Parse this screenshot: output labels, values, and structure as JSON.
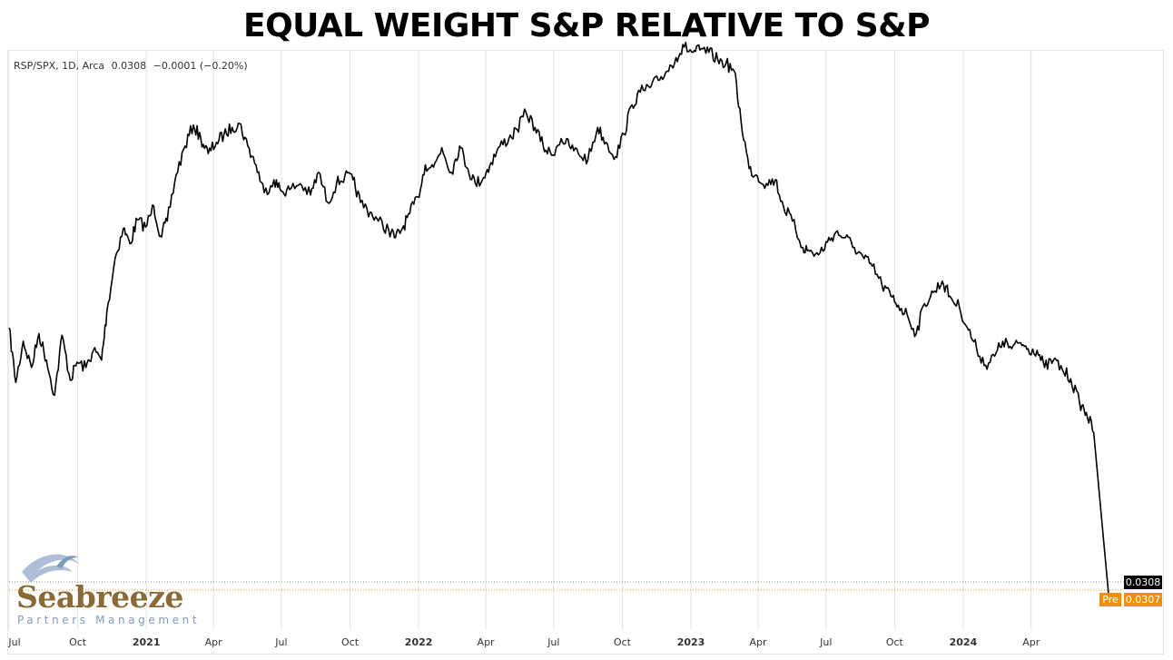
{
  "title": "EQUAL WEIGHT S&P RELATIVE TO S&P",
  "legend": {
    "symbol": "RSP/SPX, 1D, Arca",
    "value": "0.0308",
    "change": "−0.0001 (−0.20%)"
  },
  "price_tags": {
    "last": "0.0308",
    "pre_label": "Pre",
    "pre": "0.0307"
  },
  "logo": {
    "name": "Seabreeze",
    "subtitle": "Partners Management"
  },
  "colors": {
    "line": "#000000",
    "grid": "#e3e3e3",
    "pre_tag": "#f0900a",
    "logo_brown": "#8a6a37",
    "logo_blue": "#7e9bbd"
  },
  "chart_data": {
    "type": "line",
    "title": "EQUAL WEIGHT S&P RELATIVE TO S&P",
    "series_label": "RSP/SPX",
    "x_ticks": [
      "Jul",
      "Oct",
      "2021",
      "Apr",
      "Jul",
      "Oct",
      "2022",
      "Apr",
      "Jul",
      "Oct",
      "2023",
      "Apr",
      "Jul",
      "Oct",
      "2024",
      "Apr"
    ],
    "x_ticks_bold": [
      "2021",
      "2022",
      "2023",
      "2024"
    ],
    "xlim": [
      "2020-07-01",
      "2024-07-15"
    ],
    "ylim": [
      0.0305,
      0.038
    ],
    "grid": "vertical-only",
    "series": [
      {
        "values": [
          [
            "2020-07-01",
            0.03448
          ],
          [
            "2020-07-10",
            0.03375
          ],
          [
            "2020-07-20",
            0.0343
          ],
          [
            "2020-07-31",
            0.03395
          ],
          [
            "2020-08-10",
            0.0344
          ],
          [
            "2020-08-20",
            0.03405
          ],
          [
            "2020-08-31",
            0.03358
          ],
          [
            "2020-09-10",
            0.03438
          ],
          [
            "2020-09-21",
            0.03378
          ],
          [
            "2020-09-30",
            0.03402
          ],
          [
            "2020-10-12",
            0.03395
          ],
          [
            "2020-10-22",
            0.03418
          ],
          [
            "2020-11-02",
            0.03405
          ],
          [
            "2020-11-09",
            0.03468
          ],
          [
            "2020-11-20",
            0.0354
          ],
          [
            "2020-12-01",
            0.0358
          ],
          [
            "2020-12-10",
            0.0356
          ],
          [
            "2020-12-20",
            0.03592
          ],
          [
            "2020-12-31",
            0.03582
          ],
          [
            "2021-01-11",
            0.0361
          ],
          [
            "2021-01-20",
            0.0357
          ],
          [
            "2021-01-29",
            0.0359
          ],
          [
            "2021-02-10",
            0.03652
          ],
          [
            "2021-02-22",
            0.0369
          ],
          [
            "2021-03-05",
            0.03718
          ],
          [
            "2021-03-15",
            0.037
          ],
          [
            "2021-03-25",
            0.0368
          ],
          [
            "2021-04-05",
            0.03695
          ],
          [
            "2021-04-15",
            0.03705
          ],
          [
            "2021-04-26",
            0.03715
          ],
          [
            "2021-05-06",
            0.0372
          ],
          [
            "2021-05-17",
            0.0369
          ],
          [
            "2021-05-28",
            0.03665
          ],
          [
            "2021-06-08",
            0.03628
          ],
          [
            "2021-06-21",
            0.03645
          ],
          [
            "2021-07-01",
            0.0363
          ],
          [
            "2021-07-12",
            0.03632
          ],
          [
            "2021-07-26",
            0.0364
          ],
          [
            "2021-08-09",
            0.03625
          ],
          [
            "2021-08-20",
            0.03655
          ],
          [
            "2021-09-01",
            0.03615
          ],
          [
            "2021-09-13",
            0.0364
          ],
          [
            "2021-09-24",
            0.0365
          ],
          [
            "2021-10-05",
            0.03645
          ],
          [
            "2021-10-15",
            0.03615
          ],
          [
            "2021-10-28",
            0.03602
          ],
          [
            "2021-11-08",
            0.0359
          ],
          [
            "2021-11-22",
            0.03578
          ],
          [
            "2021-12-01",
            0.03568
          ],
          [
            "2021-12-10",
            0.0358
          ],
          [
            "2021-12-20",
            0.036
          ],
          [
            "2021-12-31",
            0.03622
          ],
          [
            "2022-01-10",
            0.03665
          ],
          [
            "2022-01-21",
            0.03662
          ],
          [
            "2022-02-01",
            0.03688
          ],
          [
            "2022-02-14",
            0.03655
          ],
          [
            "2022-02-25",
            0.0369
          ],
          [
            "2022-03-08",
            0.0366
          ],
          [
            "2022-03-18",
            0.0364
          ],
          [
            "2022-03-29",
            0.03648
          ],
          [
            "2022-04-08",
            0.03668
          ],
          [
            "2022-04-20",
            0.0369
          ],
          [
            "2022-05-02",
            0.037
          ],
          [
            "2022-05-13",
            0.03712
          ],
          [
            "2022-05-25",
            0.03735
          ],
          [
            "2022-06-06",
            0.03715
          ],
          [
            "2022-06-17",
            0.0369
          ],
          [
            "2022-06-28",
            0.03678
          ],
          [
            "2022-07-11",
            0.037
          ],
          [
            "2022-07-22",
            0.0369
          ],
          [
            "2022-08-03",
            0.0368
          ],
          [
            "2022-08-16",
            0.03672
          ],
          [
            "2022-08-29",
            0.03715
          ],
          [
            "2022-09-09",
            0.03695
          ],
          [
            "2022-09-22",
            0.03676
          ],
          [
            "2022-10-03",
            0.03706
          ],
          [
            "2022-10-14",
            0.03745
          ],
          [
            "2022-10-25",
            0.03762
          ],
          [
            "2022-11-07",
            0.03768
          ],
          [
            "2022-11-18",
            0.03778
          ],
          [
            "2022-11-30",
            0.0379
          ],
          [
            "2022-12-12",
            0.03808
          ],
          [
            "2022-12-23",
            0.03822
          ],
          [
            "2023-01-04",
            0.03815
          ],
          [
            "2023-01-13",
            0.03818
          ],
          [
            "2023-01-25",
            0.03815
          ],
          [
            "2023-02-06",
            0.03805
          ],
          [
            "2023-02-17",
            0.038
          ],
          [
            "2023-02-28",
            0.0379
          ],
          [
            "2023-03-09",
            0.03725
          ],
          [
            "2023-03-20",
            0.0366
          ],
          [
            "2023-03-31",
            0.0365
          ],
          [
            "2023-04-12",
            0.0364
          ],
          [
            "2023-04-24",
            0.03645
          ],
          [
            "2023-05-05",
            0.0361
          ],
          [
            "2023-05-17",
            0.0359
          ],
          [
            "2023-05-31",
            0.03555
          ],
          [
            "2023-06-09",
            0.0355
          ],
          [
            "2023-06-21",
            0.03545
          ],
          [
            "2023-07-03",
            0.03562
          ],
          [
            "2023-07-14",
            0.03575
          ],
          [
            "2023-07-27",
            0.03568
          ],
          [
            "2023-08-08",
            0.03555
          ],
          [
            "2023-08-21",
            0.0354
          ],
          [
            "2023-09-01",
            0.0353
          ],
          [
            "2023-09-14",
            0.03505
          ],
          [
            "2023-09-26",
            0.0349
          ],
          [
            "2023-10-06",
            0.03478
          ],
          [
            "2023-10-18",
            0.03465
          ],
          [
            "2023-10-30",
            0.0344
          ],
          [
            "2023-11-10",
            0.0348
          ],
          [
            "2023-11-22",
            0.03495
          ],
          [
            "2023-12-04",
            0.0351
          ],
          [
            "2023-12-14",
            0.0349
          ],
          [
            "2023-12-27",
            0.03475
          ],
          [
            "2024-01-08",
            0.03445
          ],
          [
            "2024-01-19",
            0.0342
          ],
          [
            "2024-01-31",
            0.03398
          ],
          [
            "2024-02-12",
            0.0341
          ],
          [
            "2024-02-23",
            0.0343
          ],
          [
            "2024-03-06",
            0.0342
          ],
          [
            "2024-03-18",
            0.03428
          ],
          [
            "2024-03-28",
            0.0342
          ],
          [
            "2024-04-09",
            0.03418
          ],
          [
            "2024-04-19",
            0.03395
          ],
          [
            "2024-05-01",
            0.03405
          ],
          [
            "2024-05-13",
            0.03392
          ],
          [
            "2024-05-24",
            0.0338
          ],
          [
            "2024-06-05",
            0.03348
          ],
          [
            "2024-06-14",
            0.03335
          ],
          [
            "2024-06-24",
            0.03308
          ]
        ]
      }
    ],
    "last_value": 0.0308,
    "pre_value": 0.0307
  }
}
